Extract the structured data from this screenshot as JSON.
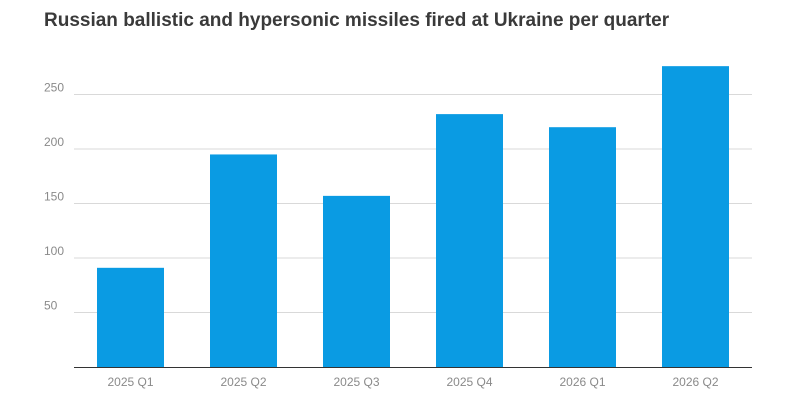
{
  "chart_data": {
    "type": "bar",
    "title": "Russian ballistic and hypersonic missiles fired at Ukraine per quarter",
    "categories": [
      "2025 Q1",
      "2025 Q2",
      "2025 Q3",
      "2025 Q4",
      "2026 Q1",
      "2026 Q2"
    ],
    "values": [
      91,
      195,
      157,
      232,
      220,
      276
    ],
    "ylim": [
      0,
      280
    ],
    "yticks": [
      50,
      100,
      150,
      200,
      250
    ],
    "xlabel": "",
    "ylabel": "",
    "grid": true,
    "colors": {
      "bar": "#0a9be3",
      "grid": "#d9d9d9",
      "axis": "#333333",
      "text": "#8a8a8a",
      "title": "#3a3a3a"
    }
  }
}
